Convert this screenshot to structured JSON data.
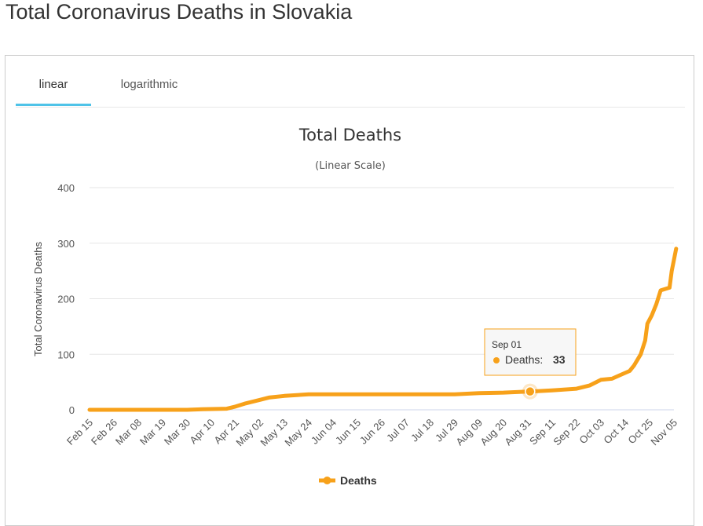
{
  "page": {
    "title": "Total Coronavirus Deaths in Slovakia"
  },
  "tabs": [
    {
      "label": "linear",
      "active": true
    },
    {
      "label": "logarithmic",
      "active": false
    }
  ],
  "colors": {
    "series": "#f7a11a",
    "tab_active": "#4fc3e8",
    "grid": "#e6e6e6"
  },
  "tooltip": {
    "date": "Sep 01",
    "series_label": "Deaths:",
    "value": "33"
  },
  "chart_data": {
    "type": "line",
    "title": "Total Deaths",
    "subtitle": "(Linear Scale)",
    "ylabel": "Total Coronavirus Deaths",
    "xlabel": "",
    "ylim": [
      0,
      400
    ],
    "yticks": [
      0,
      100,
      200,
      300,
      400
    ],
    "grid": true,
    "legend": "bottom-center",
    "xticks": [
      "Feb 15",
      "Feb 26",
      "Mar 08",
      "Mar 19",
      "Mar 30",
      "Apr 10",
      "Apr 21",
      "May 02",
      "May 13",
      "May 24",
      "Jun 04",
      "Jun 15",
      "Jun 26",
      "Jul 07",
      "Jul 18",
      "Jul 29",
      "Aug 09",
      "Aug 20",
      "Aug 31",
      "Sep 11",
      "Sep 22",
      "Oct 03",
      "Oct 14",
      "Oct 25",
      "Nov 05"
    ],
    "series": [
      {
        "name": "Deaths",
        "points": [
          [
            "Feb 15",
            0
          ],
          [
            "Mar 30",
            0
          ],
          [
            "Apr 06",
            1
          ],
          [
            "Apr 17",
            2
          ],
          [
            "Apr 21",
            6
          ],
          [
            "Apr 25",
            11
          ],
          [
            "May 02",
            18
          ],
          [
            "May 06",
            22
          ],
          [
            "May 13",
            25
          ],
          [
            "May 24",
            28
          ],
          [
            "Jul 29",
            28
          ],
          [
            "Aug 09",
            30
          ],
          [
            "Aug 20",
            31
          ],
          [
            "Aug 31",
            33
          ],
          [
            "Sep 01",
            33
          ],
          [
            "Sep 11",
            35
          ],
          [
            "Sep 22",
            38
          ],
          [
            "Sep 28",
            44
          ],
          [
            "Oct 03",
            54
          ],
          [
            "Oct 08",
            56
          ],
          [
            "Oct 12",
            63
          ],
          [
            "Oct 16",
            70
          ],
          [
            "Oct 18",
            80
          ],
          [
            "Oct 21",
            100
          ],
          [
            "Oct 23",
            125
          ],
          [
            "Oct 24",
            155
          ],
          [
            "Oct 26",
            170
          ],
          [
            "Oct 28",
            190
          ],
          [
            "Oct 30",
            215
          ],
          [
            "Nov 03",
            220
          ],
          [
            "Nov 04",
            250
          ],
          [
            "Nov 05",
            270
          ],
          [
            "Nov 06",
            290
          ]
        ]
      }
    ]
  }
}
